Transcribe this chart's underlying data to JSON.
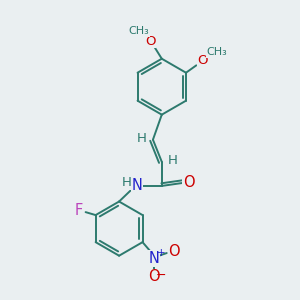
{
  "bg_color": "#eaeff1",
  "bond_color": "#2d7a6e",
  "atom_colors": {
    "O": "#cc0000",
    "N": "#2222cc",
    "F": "#bb44bb",
    "H": "#2d7a6e",
    "C": "#2d7a6e"
  },
  "bond_width": 1.4,
  "font_size": 9.5
}
